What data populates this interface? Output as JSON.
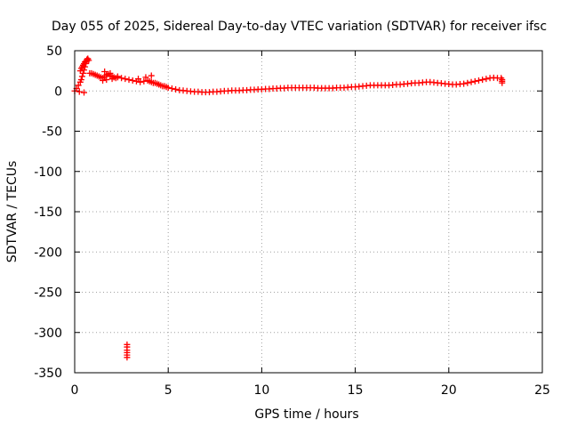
{
  "chart_data": {
    "type": "scatter",
    "title": "Day 055 of 2025, Sidereal Day-to-day VTEC variation (SDTVAR) for receiver ifsc",
    "xlabel": "GPS time / hours",
    "ylabel": "SDTVAR / TECUs",
    "xlim": [
      0,
      25
    ],
    "ylim": [
      -350,
      50
    ],
    "xticks": [
      "0",
      "5",
      "10",
      "15",
      "20",
      "25"
    ],
    "yticks": [
      "50",
      "0",
      "-50",
      "-100",
      "-150",
      "-200",
      "-250",
      "-300",
      "-350"
    ],
    "grid": true,
    "marker": "+",
    "color": "#ff0000",
    "series": [
      {
        "x": [
          0.0,
          0.1,
          0.2,
          0.3,
          0.35,
          0.4,
          0.45,
          0.5,
          0.55,
          0.6,
          0.65,
          0.7,
          0.25,
          0.3,
          0.35,
          0.4,
          0.45,
          0.5,
          0.55,
          0.6,
          0.65,
          0.7,
          0.75,
          0.5,
          0.8,
          0.9,
          1.0,
          1.1,
          1.2,
          1.3,
          1.4,
          1.5,
          1.6,
          1.7,
          1.8,
          1.9,
          2.0,
          2.1,
          2.2,
          2.3,
          1.5,
          1.7,
          2.0,
          2.3,
          1.6,
          1.9,
          2.5,
          2.7,
          2.9,
          3.1,
          3.3,
          3.5,
          3.7,
          3.9,
          4.0,
          4.1,
          4.2,
          4.3,
          4.4,
          4.5,
          4.6,
          4.7,
          4.8,
          4.9,
          5.0,
          3.4,
          3.8,
          4.1,
          5.2,
          5.4,
          5.6,
          5.8,
          6.0,
          6.2,
          6.4,
          6.6,
          6.8,
          7.0,
          7.2,
          7.4,
          7.6,
          7.8,
          8.0,
          8.2,
          8.4,
          8.6,
          8.8,
          9.0,
          9.2,
          9.4,
          9.6,
          9.8,
          10.0,
          10.2,
          10.4,
          10.6,
          10.8,
          11.0,
          11.2,
          11.4,
          11.6,
          11.8,
          12.0,
          12.2,
          12.4,
          12.6,
          12.8,
          13.0,
          13.2,
          13.4,
          13.6,
          13.8,
          14.0,
          14.2,
          14.4,
          14.6,
          14.8,
          15.0,
          15.2,
          15.4,
          15.6,
          15.8,
          16.0,
          16.2,
          16.4,
          16.6,
          16.8,
          17.0,
          17.2,
          17.4,
          17.6,
          17.8,
          18.0,
          18.2,
          18.4,
          18.6,
          18.8,
          19.0,
          19.2,
          19.4,
          19.6,
          19.8,
          20.0,
          20.2,
          20.4,
          20.6,
          20.8,
          21.0,
          21.2,
          21.4,
          21.6,
          21.8,
          22.0,
          22.2,
          22.4,
          22.6,
          22.8,
          22.85,
          22.85,
          22.85,
          2.8,
          2.8,
          2.8,
          2.8,
          2.8,
          2.8
        ],
        "y": [
          0,
          3,
          7,
          11,
          14,
          18,
          22,
          26,
          30,
          34,
          37,
          40,
          -1,
          25,
          28,
          30,
          32,
          34,
          36,
          37,
          39,
          40,
          38,
          -2,
          22,
          22,
          21,
          20,
          19,
          18,
          17,
          16,
          18,
          20,
          21,
          19,
          18,
          17,
          16,
          18,
          13,
          14,
          15,
          17,
          24,
          22,
          16,
          15,
          14,
          13,
          12,
          11,
          12,
          13,
          12,
          11,
          10,
          10,
          9,
          8,
          7,
          6,
          6,
          5,
          4,
          15,
          17,
          19,
          3,
          2,
          1,
          0.5,
          0,
          -0.5,
          -1,
          -1,
          -1.5,
          -1.5,
          -1.5,
          -1,
          -1,
          -0.5,
          0,
          0,
          0.5,
          0.5,
          0.5,
          1,
          1,
          1.5,
          1.5,
          2,
          2,
          2.5,
          2.5,
          3,
          3,
          3.5,
          3.5,
          4,
          4,
          4,
          4,
          4,
          4,
          4,
          4,
          3.5,
          3.5,
          3.5,
          3.5,
          3.5,
          4,
          4,
          4,
          4.5,
          5,
          5,
          5.5,
          6,
          6.5,
          7,
          7,
          7,
          7,
          7,
          7,
          7.5,
          8,
          8,
          8.5,
          9,
          9.5,
          10,
          10,
          10.5,
          11,
          11,
          10.5,
          10,
          9.5,
          9,
          8.5,
          8,
          8,
          8.5,
          9,
          10,
          11,
          12,
          13,
          14,
          15,
          16,
          16.5,
          16,
          16,
          14,
          12,
          10,
          -315,
          -318,
          -322,
          -325,
          -328,
          -331
        ]
      }
    ]
  }
}
